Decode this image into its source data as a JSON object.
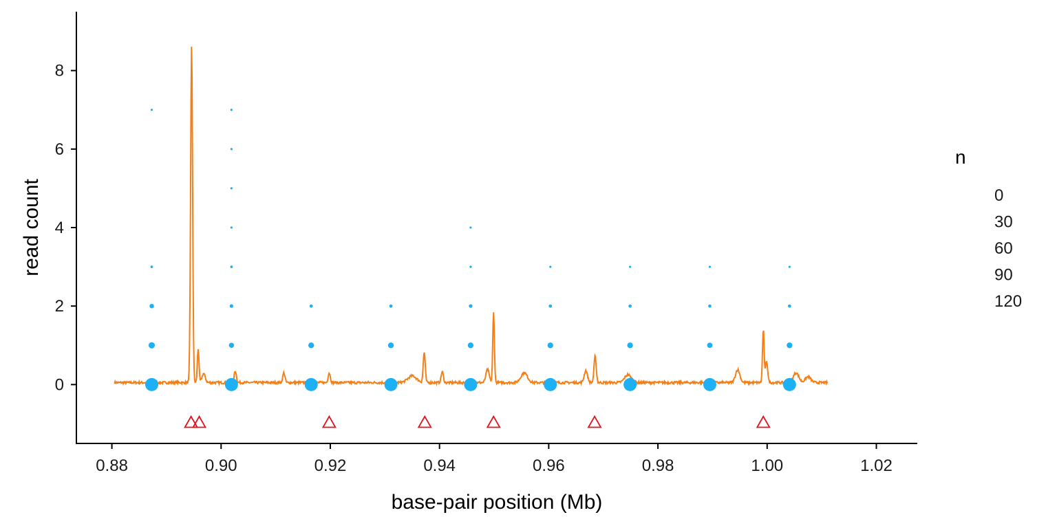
{
  "chart_data": {
    "type": "scatter",
    "xlabel": "base-pair position (Mb)",
    "ylabel": "read count",
    "xlim": [
      0.8735,
      1.0275
    ],
    "ylim": [
      -1.5,
      9.5
    ],
    "x_ticks": [
      0.88,
      0.9,
      0.92,
      0.94,
      0.96,
      0.98,
      1.0,
      1.02
    ],
    "x_tick_labels": [
      "0.88",
      "0.90",
      "0.92",
      "0.94",
      "0.96",
      "0.98",
      "1.00",
      "1.02"
    ],
    "y_ticks": [
      0,
      2,
      4,
      6,
      8
    ],
    "y_tick_labels": [
      "0",
      "2",
      "4",
      "6",
      "8"
    ],
    "grid": false,
    "colors": {
      "points": "#1EB0F5",
      "line": "#F57F17",
      "triangles": "#E0141E",
      "axis": "#000000"
    },
    "legend": {
      "title": "n",
      "placement": "right",
      "entries": [
        "0",
        "30",
        "60",
        "90",
        "120"
      ]
    },
    "series": [
      {
        "kind": "points",
        "columns": [
          {
            "x": 0.8873,
            "y": [
              0,
              1,
              2,
              3,
              7
            ],
            "n": [
              130,
              30,
              15,
              5,
              1
            ]
          },
          {
            "x": 0.9019,
            "y": [
              0,
              1,
              2,
              3,
              4,
              5,
              6,
              7
            ],
            "n": [
              130,
              20,
              10,
              5,
              3,
              2,
              1,
              1
            ]
          },
          {
            "x": 0.9165,
            "y": [
              0,
              1,
              2
            ],
            "n": [
              130,
              25,
              8
            ]
          },
          {
            "x": 0.9311,
            "y": [
              0,
              1,
              2
            ],
            "n": [
              130,
              25,
              8
            ]
          },
          {
            "x": 0.9457,
            "y": [
              0,
              1,
              2,
              3,
              4
            ],
            "n": [
              130,
              25,
              10,
              4,
              1
            ]
          },
          {
            "x": 0.9603,
            "y": [
              0,
              1,
              2,
              3
            ],
            "n": [
              130,
              25,
              8,
              2
            ]
          },
          {
            "x": 0.9749,
            "y": [
              0,
              1,
              2,
              3
            ],
            "n": [
              130,
              25,
              8,
              2
            ]
          },
          {
            "x": 0.9895,
            "y": [
              0,
              1,
              2,
              3
            ],
            "n": [
              130,
              22,
              8,
              2
            ]
          },
          {
            "x": 1.0041,
            "y": [
              0,
              1,
              2,
              3
            ],
            "n": [
              130,
              25,
              8,
              2
            ]
          }
        ]
      },
      {
        "kind": "line",
        "baseline": 0.05,
        "x_range": [
          0.8805,
          1.0111
        ],
        "peaks": [
          {
            "x": 0.8946,
            "y": 8.62,
            "w": 0.00018
          },
          {
            "x": 0.8958,
            "y": 0.92,
            "w": 0.00015
          },
          {
            "x": 0.8968,
            "y": 0.28,
            "w": 0.0003
          },
          {
            "x": 0.9026,
            "y": 0.35,
            "w": 0.0002
          },
          {
            "x": 0.9115,
            "y": 0.3,
            "w": 0.0002
          },
          {
            "x": 0.9198,
            "y": 0.3,
            "w": 0.0002
          },
          {
            "x": 0.935,
            "y": 0.22,
            "w": 0.0008
          },
          {
            "x": 0.9372,
            "y": 0.82,
            "w": 0.00018
          },
          {
            "x": 0.9405,
            "y": 0.33,
            "w": 0.0002
          },
          {
            "x": 0.9488,
            "y": 0.38,
            "w": 0.0003
          },
          {
            "x": 0.9499,
            "y": 1.83,
            "w": 0.00015
          },
          {
            "x": 0.9555,
            "y": 0.3,
            "w": 0.0006
          },
          {
            "x": 0.9668,
            "y": 0.36,
            "w": 0.0003
          },
          {
            "x": 0.9685,
            "y": 0.72,
            "w": 0.0002
          },
          {
            "x": 0.9745,
            "y": 0.25,
            "w": 0.0006
          },
          {
            "x": 0.9946,
            "y": 0.38,
            "w": 0.0004
          },
          {
            "x": 0.9993,
            "y": 1.4,
            "w": 0.00015
          },
          {
            "x": 0.9999,
            "y": 0.6,
            "w": 0.0002
          },
          {
            "x": 1.0053,
            "y": 0.3,
            "w": 0.0005
          },
          {
            "x": 1.0075,
            "y": 0.2,
            "w": 0.0005
          }
        ]
      },
      {
        "kind": "triangles",
        "y": -0.97,
        "x": [
          0.8945,
          0.896,
          0.9198,
          0.9373,
          0.9499,
          0.9684,
          0.9993
        ]
      }
    ]
  }
}
